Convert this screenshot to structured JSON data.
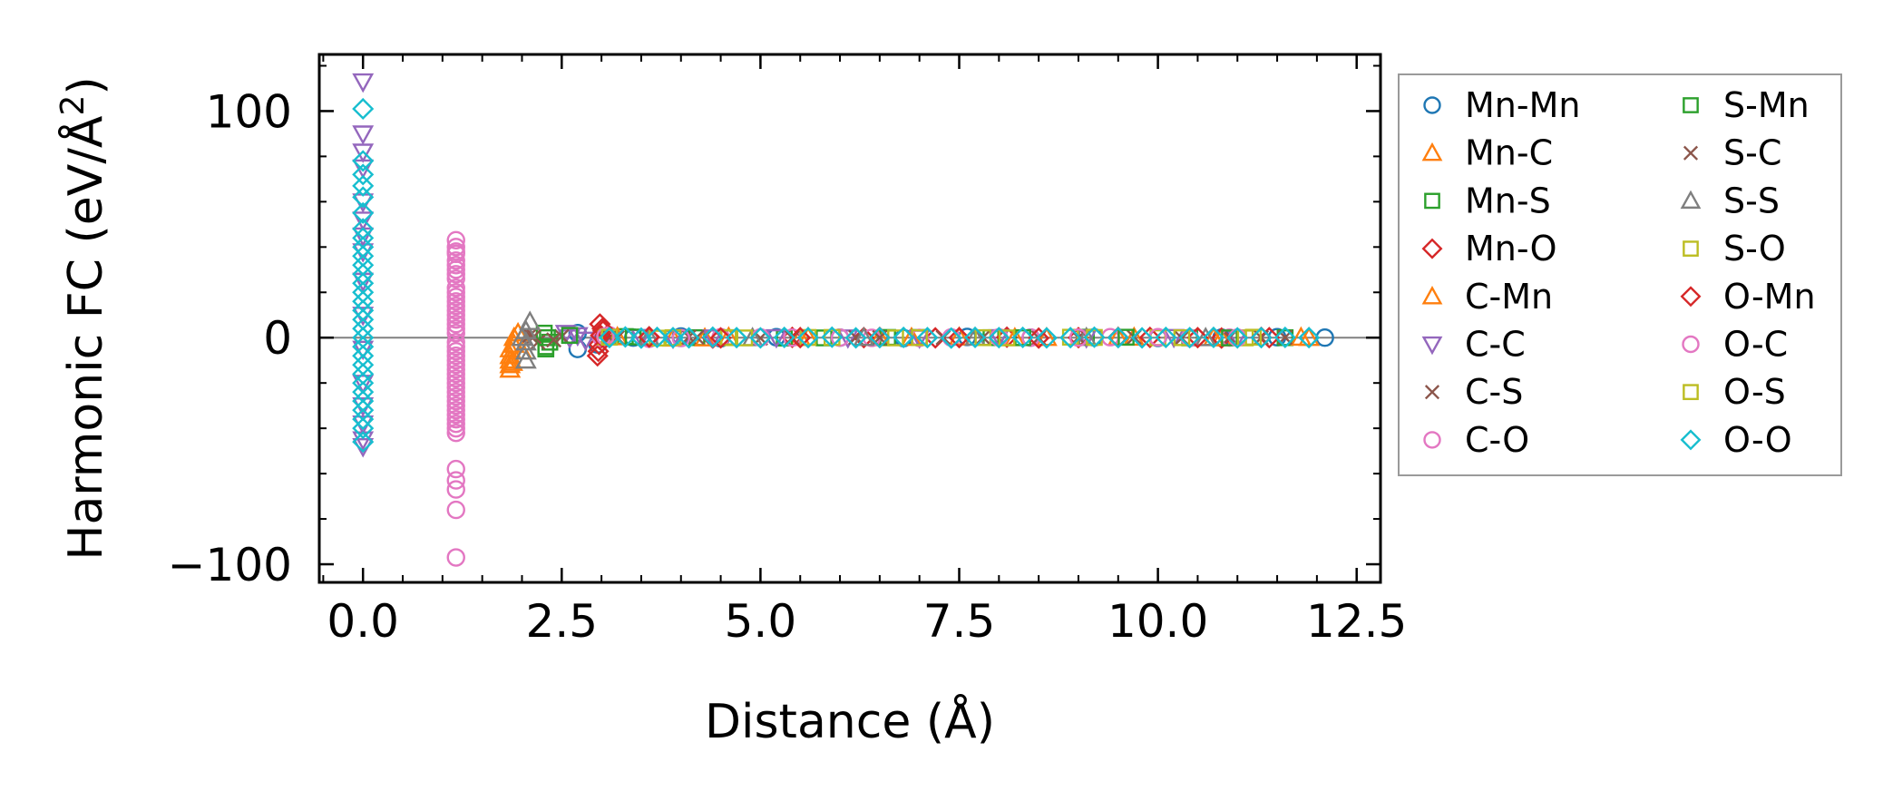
{
  "chart_data": {
    "type": "scatter",
    "title": "",
    "xlabel": "Distance (Å)",
    "ylabel_main": "Harmonic FC (eV/Å",
    "ylabel_sup": "2",
    "ylabel_close": ")",
    "xlim": [
      -0.55,
      12.8
    ],
    "ylim": [
      -108,
      125
    ],
    "xticks": [
      0.0,
      2.5,
      5.0,
      7.5,
      10.0,
      12.5
    ],
    "xtick_labels": [
      "0.0",
      "2.5",
      "5.0",
      "7.5",
      "10.0",
      "12.5"
    ],
    "yticks": [
      -100,
      0,
      100
    ],
    "ytick_labels": [
      "−100",
      "0",
      "100"
    ],
    "x_minor_step": 0.5,
    "y_minor_step": 20,
    "zero_line": 0,
    "grid": false,
    "legend_position": "outside-right",
    "legend_columns": 2,
    "series": [
      {
        "name": "Mn-Mn",
        "color": "#1f77b4",
        "marker": "circle",
        "x": [
          2.7,
          2.7,
          2.95,
          3.4,
          4.0,
          4.5,
          5.2,
          6.0,
          6.8,
          7.6,
          8.4,
          9.2,
          10.0,
          10.8,
          11.5,
          12.1
        ],
        "y": [
          -5,
          2,
          -3,
          0,
          0.5,
          -0.3,
          0.2,
          0,
          -0.2,
          0.3,
          0,
          0.1,
          -0.1,
          0,
          0.2,
          0
        ]
      },
      {
        "name": "Mn-C",
        "color": "#ff7f0e",
        "marker": "triangle-up",
        "x": [
          3.1,
          3.9,
          4.6,
          5.5,
          6.5,
          7.5,
          8.6,
          9.7,
          10.8,
          11.9
        ],
        "y": [
          0.5,
          -0.3,
          0.2,
          0,
          -0.1,
          0.2,
          0,
          0.1,
          -0.2,
          0
        ]
      },
      {
        "name": "Mn-S",
        "color": "#2ca02c",
        "marker": "square",
        "x": [
          2.3,
          2.35,
          2.6,
          3.3,
          4.2,
          5.3,
          6.6,
          7.9,
          9.1,
          10.4,
          11.6
        ],
        "y": [
          -5,
          -2,
          1,
          0.5,
          0,
          -0.2,
          0.1,
          0,
          0.2,
          -0.1,
          0
        ]
      },
      {
        "name": "Mn-O",
        "color": "#d62728",
        "marker": "diamond",
        "x": [
          2.95,
          2.97,
          3.0,
          3.02,
          2.98,
          3.6,
          4.4,
          5.4,
          6.3,
          7.2,
          8.1,
          9.0,
          9.9,
          10.8,
          11.4
        ],
        "y": [
          -8,
          -3,
          0,
          3,
          6,
          0.4,
          -0.2,
          0.1,
          0,
          -0.1,
          0.2,
          0,
          0.1,
          -0.2,
          0
        ]
      },
      {
        "name": "C-Mn",
        "color": "#ff7f0e",
        "marker": "triangle-up",
        "x": [
          1.85,
          1.85,
          1.85,
          1.85,
          1.85,
          1.9,
          1.9,
          1.95,
          2.0,
          1.88,
          3.2,
          4.3,
          5.6,
          6.9,
          8.2,
          9.5,
          10.7,
          11.8
        ],
        "y": [
          -14,
          -12,
          -10,
          -8,
          -5,
          -3,
          0,
          2,
          -6,
          -11,
          0.3,
          -0.2,
          0.1,
          0,
          -0.1,
          0.2,
          0,
          0.1
        ]
      },
      {
        "name": "C-C",
        "color": "#9467bd",
        "marker": "triangle-down",
        "x": [
          0,
          0,
          0,
          0,
          0,
          0,
          0,
          0,
          0,
          0,
          0,
          0,
          0,
          0,
          0,
          0,
          2.6,
          2.7,
          2.8,
          2.55,
          3.5,
          3.9,
          4.4,
          5.2,
          6.1,
          7.0,
          8.0,
          9.1,
          10.2,
          11.0
        ],
        "y": [
          113,
          90,
          82,
          75,
          60,
          52,
          45,
          38,
          25,
          10,
          -5,
          -20,
          -30,
          -38,
          -45,
          -48,
          0,
          1,
          -1,
          2,
          0.2,
          -0.2,
          0,
          0.1,
          0,
          -0.1,
          0.1,
          0,
          0.2,
          0
        ]
      },
      {
        "name": "C-S",
        "color": "#8c564b",
        "marker": "x",
        "x": [
          2.1,
          2.2,
          2.5,
          3.2,
          4.1,
          5.0,
          6.2,
          7.3,
          8.5,
          9.7,
          10.9,
          11.6
        ],
        "y": [
          1,
          -2,
          0.5,
          0,
          0.3,
          -0.2,
          0.1,
          0,
          -0.1,
          0.2,
          0,
          0.1
        ]
      },
      {
        "name": "C-O",
        "color": "#e377c2",
        "marker": "circle",
        "x": [
          1.17,
          1.17,
          1.17,
          1.17,
          1.17,
          1.17,
          1.17,
          1.17,
          1.17,
          1.17,
          1.17,
          1.17,
          1.17,
          1.17,
          1.17,
          1.17,
          1.17,
          1.17,
          1.17,
          1.17,
          1.17,
          1.17,
          1.17,
          1.17,
          1.17,
          1.17,
          1.17,
          1.17,
          1.17,
          1.17,
          1.17,
          1.17,
          3.0,
          3.1,
          3.6,
          4.5,
          5.4,
          6.4,
          7.4,
          8.4,
          9.4,
          10.4,
          10.9
        ],
        "y": [
          43,
          40,
          37,
          34,
          30,
          26,
          22,
          18,
          14,
          10,
          6,
          2,
          -2,
          -6,
          -10,
          -14,
          -18,
          -22,
          -26,
          -30,
          -34,
          -38,
          -42,
          -36,
          -20,
          -8,
          -58,
          -63,
          -67,
          -76,
          -97,
          12,
          0,
          1,
          -0.5,
          0.2,
          0,
          -0.1,
          0.1,
          0,
          0.2,
          -0.1,
          0
        ]
      },
      {
        "name": "S-Mn",
        "color": "#2ca02c",
        "marker": "square",
        "x": [
          2.3,
          2.32,
          2.28,
          2.6,
          3.4,
          4.6,
          5.8,
          7.0,
          8.3,
          9.6,
          10.9
        ],
        "y": [
          -4,
          0,
          2,
          1,
          0.3,
          0,
          -0.1,
          0.1,
          0,
          0.2,
          -0.1
        ]
      },
      {
        "name": "S-C",
        "color": "#8c564b",
        "marker": "x",
        "x": [
          2.15,
          2.4,
          3.1,
          4.2,
          5.4,
          6.5,
          7.8,
          9.0,
          10.3,
          11.3
        ],
        "y": [
          0.5,
          -1,
          0,
          0.2,
          -0.1,
          0,
          0.1,
          0,
          -0.2,
          0
        ]
      },
      {
        "name": "S-S",
        "color": "#7f7f7f",
        "marker": "triangle-up",
        "x": [
          2.05,
          2.05,
          2.05,
          2.05,
          2.1,
          2.0,
          3.6,
          4.9,
          6.3,
          7.7,
          9.1,
          10.6
        ],
        "y": [
          -10,
          -6,
          -2,
          3,
          7,
          0,
          0.2,
          -0.1,
          0,
          0.1,
          0,
          -0.1
        ]
      },
      {
        "name": "S-O",
        "color": "#bcbd22",
        "marker": "square",
        "x": [
          3.05,
          3.7,
          4.6,
          5.6,
          6.7,
          7.8,
          8.9,
          10.0,
          11.1
        ],
        "y": [
          0.3,
          -0.2,
          0,
          0.1,
          -0.1,
          0,
          0.2,
          0,
          -0.1
        ]
      },
      {
        "name": "O-Mn",
        "color": "#d62728",
        "marker": "diamond",
        "x": [
          2.96,
          2.99,
          3.01,
          3.6,
          4.5,
          5.5,
          6.5,
          7.5,
          8.5,
          9.5,
          10.5,
          11.3
        ],
        "y": [
          -6,
          1,
          4,
          0.2,
          -0.1,
          0,
          0.1,
          0,
          -0.2,
          0.1,
          0,
          0.1
        ]
      },
      {
        "name": "O-C",
        "color": "#e377c2",
        "marker": "circle",
        "x": [
          1.17,
          1.17,
          1.17,
          1.17,
          1.17,
          1.17,
          1.17,
          1.17,
          1.17,
          1.17,
          1.17,
          1.17,
          1.17,
          1.17,
          3.05,
          4.0,
          5.0,
          6.0,
          7.0,
          8.0,
          9.0,
          10.0,
          11.0
        ],
        "y": [
          38,
          32,
          28,
          20,
          16,
          8,
          4,
          -4,
          -12,
          -16,
          -24,
          -28,
          -32,
          -40,
          0.5,
          -0.2,
          0.1,
          0,
          -0.1,
          0.1,
          0,
          0.2,
          0
        ]
      },
      {
        "name": "O-S",
        "color": "#bcbd22",
        "marker": "square",
        "x": [
          3.1,
          3.9,
          4.8,
          5.9,
          7.0,
          8.1,
          9.2,
          10.3,
          11.2
        ],
        "y": [
          0.2,
          0,
          -0.1,
          0.1,
          0,
          -0.1,
          0.1,
          0,
          0.2
        ]
      },
      {
        "name": "O-O",
        "color": "#17becf",
        "marker": "diamond",
        "x": [
          0,
          0,
          0,
          0,
          0,
          0,
          0,
          0,
          0,
          0,
          0,
          0,
          0,
          0,
          0,
          0,
          0,
          0,
          0,
          0,
          0,
          0,
          0,
          0,
          0,
          0,
          0,
          0,
          0,
          0,
          3.1,
          3.3,
          3.5,
          3.7,
          3.9,
          4.1,
          4.4,
          4.7,
          5.0,
          5.3,
          5.6,
          5.9,
          6.2,
          6.5,
          6.8,
          7.1,
          7.4,
          7.7,
          8.0,
          8.3,
          8.6,
          8.9,
          9.2,
          9.5,
          9.8,
          10.1,
          10.4,
          10.7,
          11.0,
          11.3,
          11.6,
          11.9
        ],
        "y": [
          101,
          78,
          72,
          67,
          62,
          55,
          48,
          44,
          40,
          36,
          32,
          28,
          24,
          20,
          16,
          12,
          8,
          4,
          0,
          -4,
          -8,
          -12,
          -16,
          -20,
          -24,
          -28,
          -32,
          -36,
          -40,
          -46,
          0,
          0.3,
          -0.2,
          0.1,
          0,
          -0.1,
          0.2,
          0,
          -0.1,
          0.1,
          0,
          0.2,
          -0.1,
          0,
          0.1,
          0,
          -0.2,
          0.1,
          0,
          0.1,
          -0.1,
          0,
          0.2,
          0,
          -0.1,
          0.1,
          0,
          0.1,
          -0.1,
          0,
          0.1,
          0
        ]
      }
    ]
  }
}
